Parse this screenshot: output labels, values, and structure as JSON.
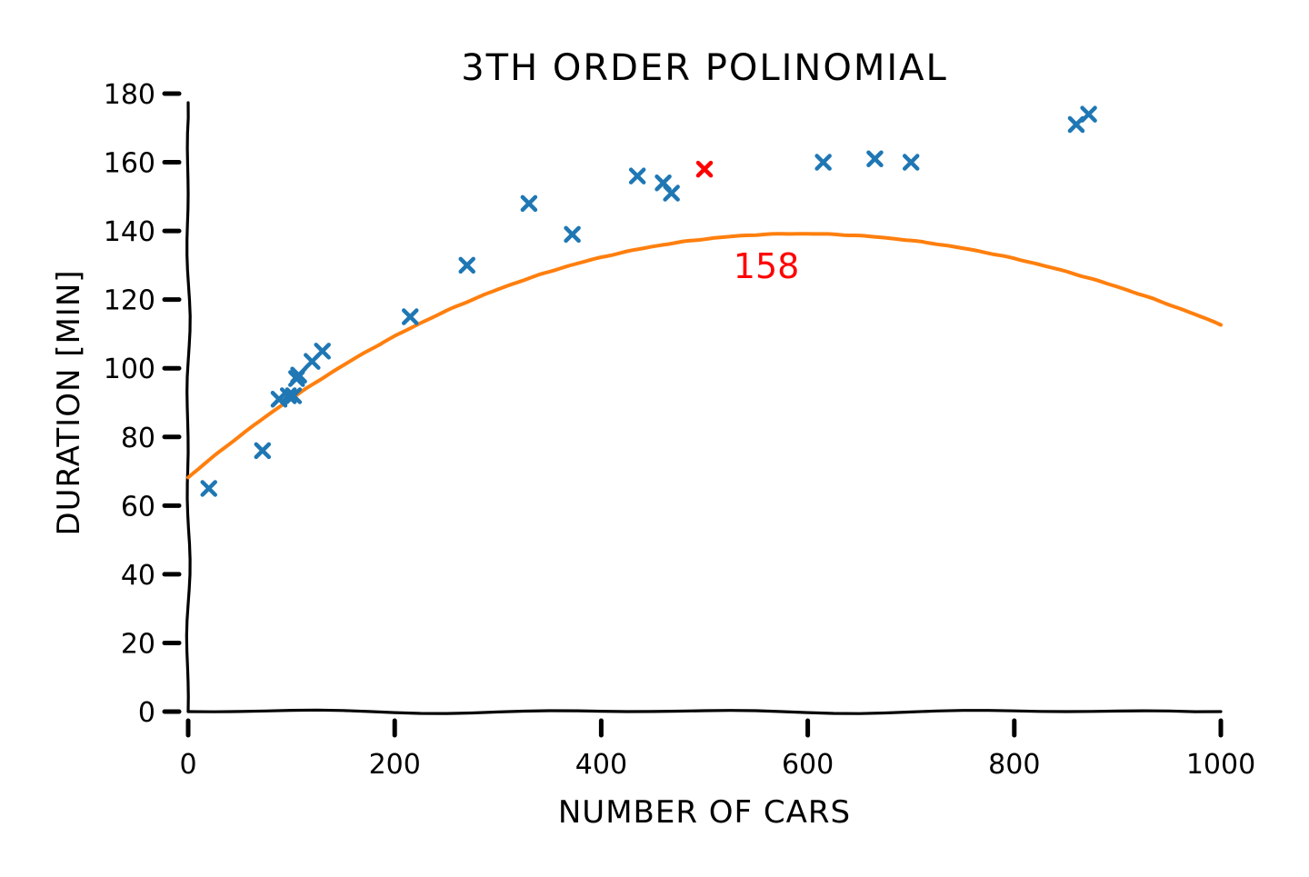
{
  "chart_data": {
    "type": "scatter",
    "title": "3TH ORDER POLINOMIAL",
    "xlabel": "NUMBER OF CARS",
    "ylabel": "DURATION [MIN]",
    "xlim": [
      0,
      1000
    ],
    "ylim": [
      0,
      180
    ],
    "xticks": [
      0,
      200,
      400,
      600,
      800,
      1000
    ],
    "yticks": [
      0,
      20,
      40,
      60,
      80,
      100,
      120,
      140,
      160,
      180
    ],
    "grid": false,
    "style": "xkcd hand-drawn",
    "colors": {
      "points": "#1f77b4",
      "curve": "#ff7f0e",
      "highlight": "#ff0000",
      "axis": "#000000"
    },
    "series": [
      {
        "type": "scatter",
        "marker": "x",
        "color": "#1f77b4",
        "points": [
          [
            20,
            65
          ],
          [
            72,
            76
          ],
          [
            88,
            91
          ],
          [
            97,
            92
          ],
          [
            102,
            92
          ],
          [
            105,
            97
          ],
          [
            107,
            98
          ],
          [
            120,
            102
          ],
          [
            130,
            105
          ],
          [
            215,
            115
          ],
          [
            270,
            130
          ],
          [
            330,
            148
          ],
          [
            372,
            139
          ],
          [
            435,
            156
          ],
          [
            460,
            154
          ],
          [
            468,
            151
          ],
          [
            615,
            160
          ],
          [
            665,
            161
          ],
          [
            700,
            160
          ],
          [
            860,
            171
          ],
          [
            872,
            174
          ]
        ]
      },
      {
        "type": "line",
        "color": "#ff7f0e",
        "coefficients": [
          68.2,
          0.2545,
          -0.0002525,
          4.25e-08
        ],
        "x_range": [
          0,
          1000
        ]
      },
      {
        "type": "scatter",
        "marker": "x",
        "color": "#ff0000",
        "points": [
          [
            500,
            158
          ]
        ]
      }
    ],
    "annotations": [
      {
        "text": "158",
        "x": 528,
        "y": 130,
        "color": "#ff0000"
      }
    ]
  }
}
